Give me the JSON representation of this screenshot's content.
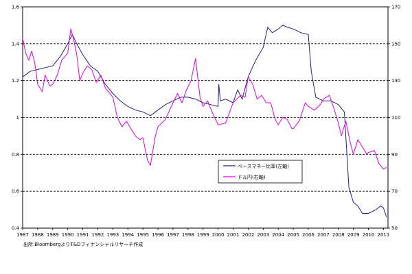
{
  "source_note": "出所:BloombergよりT&Dフィナンシャルリサーチ作成",
  "chart_data": {
    "type": "line",
    "x_ticks": [
      "1987",
      "1988",
      "1989",
      "1990",
      "1991",
      "1992",
      "1993",
      "1994",
      "1995",
      "1996",
      "1997",
      "1998",
      "1999",
      "2000",
      "2001",
      "2002",
      "2003",
      "2004",
      "2005",
      "2006",
      "2007",
      "2008",
      "2009",
      "2010",
      "2011"
    ],
    "y_left_ticks": [
      "0.4",
      "0.6",
      "0.8",
      "1",
      "1.2",
      "1.4",
      "1.6"
    ],
    "y_right_ticks": [
      "50",
      "70",
      "90",
      "110",
      "130",
      "150",
      "170"
    ],
    "y_left_range": [
      0.4,
      1.6
    ],
    "y_right_range": [
      50,
      170
    ],
    "gridlines_dashed_at_left": [
      0.6,
      0.8,
      1.0,
      1.2,
      1.4
    ],
    "legend": {
      "placement": "center-right"
    },
    "series": [
      {
        "name": "ベースマネー比率(左軸)",
        "axis": "left",
        "color": "#1f1f7a",
        "points": [
          [
            1987.0,
            1.22
          ],
          [
            1987.5,
            1.25
          ],
          [
            1988.0,
            1.26
          ],
          [
            1988.5,
            1.27
          ],
          [
            1989.0,
            1.28
          ],
          [
            1989.5,
            1.33
          ],
          [
            1990.0,
            1.4
          ],
          [
            1990.3,
            1.45
          ],
          [
            1990.6,
            1.4
          ],
          [
            1991.0,
            1.34
          ],
          [
            1991.5,
            1.28
          ],
          [
            1992.0,
            1.25
          ],
          [
            1992.5,
            1.18
          ],
          [
            1993.0,
            1.13
          ],
          [
            1993.5,
            1.09
          ],
          [
            1994.0,
            1.06
          ],
          [
            1994.5,
            1.04
          ],
          [
            1995.0,
            1.03
          ],
          [
            1995.5,
            1.01
          ],
          [
            1996.0,
            1.04
          ],
          [
            1996.5,
            1.07
          ],
          [
            1997.0,
            1.09
          ],
          [
            1997.5,
            1.11
          ],
          [
            1998.0,
            1.11
          ],
          [
            1998.5,
            1.1
          ],
          [
            1999.0,
            1.08
          ],
          [
            1999.5,
            1.07
          ],
          [
            2000.0,
            1.06
          ],
          [
            2000.05,
            1.18
          ],
          [
            2000.15,
            1.09
          ],
          [
            2000.5,
            1.1
          ],
          [
            2001.0,
            1.08
          ],
          [
            2001.3,
            1.15
          ],
          [
            2001.6,
            1.1
          ],
          [
            2002.0,
            1.22
          ],
          [
            2002.5,
            1.31
          ],
          [
            2003.0,
            1.38
          ],
          [
            2003.3,
            1.49
          ],
          [
            2003.6,
            1.46
          ],
          [
            2004.0,
            1.48
          ],
          [
            2004.3,
            1.5
          ],
          [
            2004.6,
            1.49
          ],
          [
            2005.0,
            1.48
          ],
          [
            2005.5,
            1.46
          ],
          [
            2006.0,
            1.45
          ],
          [
            2006.2,
            1.25
          ],
          [
            2006.5,
            1.11
          ],
          [
            2007.0,
            1.09
          ],
          [
            2007.5,
            1.09
          ],
          [
            2008.0,
            1.07
          ],
          [
            2008.4,
            1.03
          ],
          [
            2008.7,
            0.62
          ],
          [
            2009.0,
            0.54
          ],
          [
            2009.3,
            0.52
          ],
          [
            2009.6,
            0.48
          ],
          [
            2010.0,
            0.48
          ],
          [
            2010.5,
            0.5
          ],
          [
            2010.8,
            0.52
          ],
          [
            2011.0,
            0.51
          ],
          [
            2011.2,
            0.46
          ]
        ]
      },
      {
        "name": "ドル円(右軸)",
        "axis": "right",
        "color": "#e000e0",
        "points": [
          [
            1987.0,
            153
          ],
          [
            1987.2,
            145
          ],
          [
            1987.4,
            141
          ],
          [
            1987.6,
            146
          ],
          [
            1987.8,
            140
          ],
          [
            1988.0,
            128
          ],
          [
            1988.3,
            124
          ],
          [
            1988.5,
            133
          ],
          [
            1988.8,
            127
          ],
          [
            1989.0,
            128
          ],
          [
            1989.3,
            133
          ],
          [
            1989.6,
            141
          ],
          [
            1989.8,
            143
          ],
          [
            1990.0,
            145
          ],
          [
            1990.2,
            158
          ],
          [
            1990.4,
            152
          ],
          [
            1990.6,
            144
          ],
          [
            1990.8,
            130
          ],
          [
            1991.0,
            134
          ],
          [
            1991.3,
            138
          ],
          [
            1991.6,
            136
          ],
          [
            1991.9,
            129
          ],
          [
            1992.2,
            133
          ],
          [
            1992.5,
            126
          ],
          [
            1992.8,
            123
          ],
          [
            1993.0,
            121
          ],
          [
            1993.3,
            110
          ],
          [
            1993.6,
            105
          ],
          [
            1993.9,
            108
          ],
          [
            1994.2,
            104
          ],
          [
            1994.5,
            100
          ],
          [
            1994.8,
            98
          ],
          [
            1995.0,
            99
          ],
          [
            1995.3,
            87
          ],
          [
            1995.5,
            84
          ],
          [
            1995.8,
            99
          ],
          [
            1996.0,
            105
          ],
          [
            1996.5,
            109
          ],
          [
            1997.0,
            118
          ],
          [
            1997.3,
            123
          ],
          [
            1997.6,
            118
          ],
          [
            1997.9,
            125
          ],
          [
            1998.2,
            130
          ],
          [
            1998.5,
            142
          ],
          [
            1998.8,
            121
          ],
          [
            1999.0,
            116
          ],
          [
            1999.3,
            119
          ],
          [
            1999.6,
            113
          ],
          [
            2000.0,
            106
          ],
          [
            2000.5,
            107
          ],
          [
            2001.0,
            118
          ],
          [
            2001.5,
            122
          ],
          [
            2001.8,
            121
          ],
          [
            2002.0,
            132
          ],
          [
            2002.3,
            128
          ],
          [
            2002.6,
            120
          ],
          [
            2002.9,
            122
          ],
          [
            2003.2,
            118
          ],
          [
            2003.5,
            118
          ],
          [
            2003.8,
            109
          ],
          [
            2004.0,
            106
          ],
          [
            2004.3,
            110
          ],
          [
            2004.6,
            109
          ],
          [
            2004.9,
            104
          ],
          [
            2005.0,
            104
          ],
          [
            2005.4,
            108
          ],
          [
            2005.8,
            118
          ],
          [
            2006.0,
            116
          ],
          [
            2006.4,
            114
          ],
          [
            2006.8,
            117
          ],
          [
            2007.0,
            120
          ],
          [
            2007.4,
            122
          ],
          [
            2007.7,
            115
          ],
          [
            2008.0,
            107
          ],
          [
            2008.2,
            100
          ],
          [
            2008.5,
            108
          ],
          [
            2008.8,
            96
          ],
          [
            2009.0,
            90
          ],
          [
            2009.3,
            98
          ],
          [
            2009.6,
            94
          ],
          [
            2009.9,
            90
          ],
          [
            2010.0,
            91
          ],
          [
            2010.4,
            92
          ],
          [
            2010.7,
            85
          ],
          [
            2011.0,
            82
          ],
          [
            2011.2,
            83
          ]
        ]
      }
    ]
  }
}
